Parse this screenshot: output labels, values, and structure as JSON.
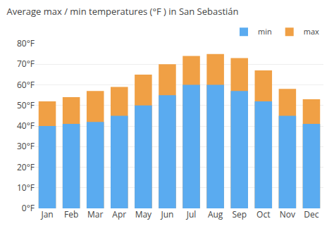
{
  "chart_data": {
    "type": "bar",
    "title": "Average max / min temperatures (°F ) in San Sebastián",
    "categories": [
      "Jan",
      "Feb",
      "Mar",
      "Apr",
      "May",
      "Jun",
      "Jul",
      "Aug",
      "Sep",
      "Oct",
      "Nov",
      "Dec"
    ],
    "series": [
      {
        "name": "max",
        "color": "#f0a045",
        "values": [
          52,
          54,
          57,
          59,
          65,
          70,
          74,
          75,
          73,
          67,
          58,
          53
        ]
      },
      {
        "name": "min",
        "color": "#5aabf0",
        "values": [
          40,
          41,
          42,
          45,
          50,
          55,
          60,
          60,
          57,
          52,
          45,
          41
        ]
      }
    ],
    "ylim": [
      0,
      80
    ],
    "yticks": [
      {
        "value": 0,
        "label": "0°F"
      },
      {
        "value": 10,
        "label": "10°F"
      },
      {
        "value": 20,
        "label": "20°F"
      },
      {
        "value": 30,
        "label": "30°F"
      },
      {
        "value": 40,
        "label": "40°F"
      },
      {
        "value": 50,
        "label": "50°F"
      },
      {
        "value": 60,
        "label": "60°F"
      },
      {
        "value": 70,
        "label": "70°F"
      },
      {
        "value": 80,
        "label": "80°F"
      }
    ],
    "grid": true,
    "legend": "upper right"
  }
}
